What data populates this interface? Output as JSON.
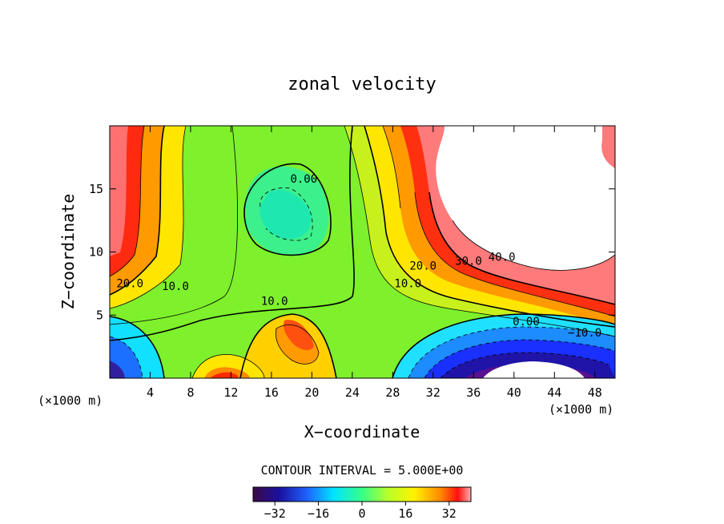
{
  "chart_data": {
    "type": "heatmap",
    "title": "zonal velocity",
    "xlabel": "X−coordinate",
    "ylabel": "Z−coordinate",
    "x_unit_left": "(×1000 m)",
    "x_unit_right": "(×1000 m)",
    "xlim": [
      0,
      50
    ],
    "ylim": [
      0,
      20
    ],
    "x_ticks": [
      4,
      8,
      12,
      16,
      20,
      24,
      28,
      32,
      36,
      40,
      44,
      48
    ],
    "y_ticks": [
      5,
      10,
      15
    ],
    "contour_interval_text": "CONTOUR INTERVAL = 5.000E+00",
    "colorbar": {
      "min": -40,
      "max": 40,
      "ticks": [
        -32,
        -16,
        0,
        16,
        32
      ]
    },
    "contour_labels": [
      {
        "text": "20.0",
        "x": 2,
        "z": 7.2
      },
      {
        "text": "10.0",
        "x": 6.5,
        "z": 7
      },
      {
        "text": "10.0",
        "x": 16.3,
        "z": 5.8
      },
      {
        "text": "0.00",
        "x": 19.2,
        "z": 15.5
      },
      {
        "text": "20.0",
        "x": 31,
        "z": 8.6
      },
      {
        "text": "10.0",
        "x": 29.5,
        "z": 7.2
      },
      {
        "text": "30.0",
        "x": 35.5,
        "z": 9
      },
      {
        "text": "40.0",
        "x": 38.8,
        "z": 9.3
      },
      {
        "text": "0.00",
        "x": 41.2,
        "z": 4.2
      },
      {
        "text": "−10.0",
        "x": 47,
        "z": 3.3
      }
    ]
  }
}
